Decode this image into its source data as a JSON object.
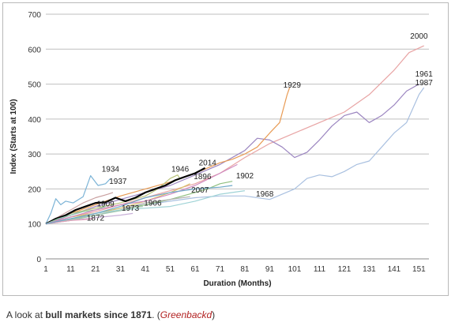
{
  "caption": {
    "prefix": "A look at ",
    "bold": "bull markets since 1871",
    "suffix": ".  (",
    "source": "Greenbackd",
    "end": ")"
  },
  "chart_data": {
    "type": "line",
    "xlabel": "Duration (Months)",
    "ylabel": "Index (Starts at 100)",
    "xlim": [
      1,
      155
    ],
    "ylim": [
      0,
      700
    ],
    "xticks": [
      1,
      11,
      21,
      31,
      41,
      51,
      61,
      71,
      81,
      91,
      101,
      111,
      121,
      131,
      141,
      151
    ],
    "yticks": [
      0,
      100,
      200,
      300,
      400,
      500,
      600,
      700
    ],
    "grid": "horizontal",
    "series": [
      {
        "name": "2000",
        "color": "#e8a4a4",
        "points": [
          [
            1,
            100
          ],
          [
            11,
            120
          ],
          [
            21,
            135
          ],
          [
            31,
            155
          ],
          [
            41,
            175
          ],
          [
            51,
            195
          ],
          [
            61,
            215
          ],
          [
            71,
            245
          ],
          [
            81,
            290
          ],
          [
            91,
            330
          ],
          [
            101,
            360
          ],
          [
            111,
            390
          ],
          [
            121,
            420
          ],
          [
            131,
            470
          ],
          [
            141,
            540
          ],
          [
            147,
            590
          ],
          [
            153,
            610
          ]
        ]
      },
      {
        "name": "1961",
        "color": "#9b85c0",
        "points": [
          [
            1,
            100
          ],
          [
            11,
            125
          ],
          [
            21,
            150
          ],
          [
            31,
            170
          ],
          [
            41,
            190
          ],
          [
            51,
            210
          ],
          [
            61,
            240
          ],
          [
            71,
            270
          ],
          [
            81,
            310
          ],
          [
            86,
            345
          ],
          [
            91,
            340
          ],
          [
            96,
            320
          ],
          [
            101,
            290
          ],
          [
            106,
            305
          ],
          [
            111,
            340
          ],
          [
            116,
            380
          ],
          [
            121,
            410
          ],
          [
            126,
            420
          ],
          [
            131,
            390
          ],
          [
            136,
            410
          ],
          [
            141,
            440
          ],
          [
            146,
            480
          ],
          [
            151,
            500
          ]
        ]
      },
      {
        "name": "1987",
        "color": "#a9c0e0",
        "points": [
          [
            1,
            100
          ],
          [
            11,
            115
          ],
          [
            21,
            130
          ],
          [
            31,
            145
          ],
          [
            41,
            155
          ],
          [
            51,
            165
          ],
          [
            61,
            175
          ],
          [
            71,
            180
          ],
          [
            81,
            180
          ],
          [
            91,
            170
          ],
          [
            96,
            185
          ],
          [
            101,
            200
          ],
          [
            106,
            230
          ],
          [
            111,
            240
          ],
          [
            116,
            235
          ],
          [
            121,
            250
          ],
          [
            126,
            270
          ],
          [
            131,
            280
          ],
          [
            136,
            320
          ],
          [
            141,
            360
          ],
          [
            146,
            390
          ],
          [
            151,
            470
          ],
          [
            153,
            490
          ]
        ]
      },
      {
        "name": "1929",
        "color": "#e89b55",
        "points": [
          [
            1,
            100
          ],
          [
            11,
            130
          ],
          [
            21,
            155
          ],
          [
            31,
            180
          ],
          [
            41,
            200
          ],
          [
            51,
            220
          ],
          [
            61,
            245
          ],
          [
            71,
            275
          ],
          [
            76,
            285
          ],
          [
            81,
            300
          ],
          [
            86,
            320
          ],
          [
            91,
            360
          ],
          [
            95,
            390
          ],
          [
            98,
            470
          ],
          [
            99,
            490
          ]
        ]
      },
      {
        "name": "1934",
        "color": "#7bb3d6",
        "points": [
          [
            1,
            100
          ],
          [
            3,
            130
          ],
          [
            5,
            172
          ],
          [
            7,
            155
          ],
          [
            9,
            165
          ],
          [
            12,
            160
          ],
          [
            16,
            178
          ],
          [
            19,
            238
          ],
          [
            22,
            210
          ],
          [
            25,
            215
          ],
          [
            27,
            230
          ]
        ]
      },
      {
        "name": "1937",
        "color": "#c9a0a0",
        "points": [
          [
            1,
            100
          ],
          [
            6,
            120
          ],
          [
            11,
            140
          ],
          [
            16,
            160
          ],
          [
            21,
            175
          ],
          [
            26,
            185
          ],
          [
            28,
            190
          ]
        ]
      },
      {
        "name": "1946",
        "color": "#b8c27a",
        "points": [
          [
            1,
            100
          ],
          [
            11,
            130
          ],
          [
            21,
            145
          ],
          [
            31,
            160
          ],
          [
            41,
            180
          ],
          [
            46,
            200
          ],
          [
            51,
            230
          ],
          [
            54,
            240
          ],
          [
            55,
            228
          ]
        ]
      },
      {
        "name": "1896",
        "color": "#d9c06a",
        "points": [
          [
            1,
            100
          ],
          [
            11,
            120
          ],
          [
            21,
            130
          ],
          [
            31,
            145
          ],
          [
            41,
            165
          ],
          [
            51,
            190
          ],
          [
            56,
            205
          ],
          [
            59,
            215
          ]
        ]
      },
      {
        "name": "2014",
        "color": "#000000",
        "points": [
          [
            1,
            100
          ],
          [
            5,
            115
          ],
          [
            9,
            125
          ],
          [
            13,
            140
          ],
          [
            17,
            150
          ],
          [
            21,
            160
          ],
          [
            25,
            162
          ],
          [
            29,
            175
          ],
          [
            33,
            165
          ],
          [
            37,
            175
          ],
          [
            41,
            190
          ],
          [
            45,
            200
          ],
          [
            49,
            210
          ],
          [
            53,
            225
          ],
          [
            57,
            235
          ],
          [
            61,
            245
          ],
          [
            65,
            260
          ]
        ]
      },
      {
        "name": "1902",
        "color": "#8fbf7f",
        "points": [
          [
            1,
            100
          ],
          [
            11,
            110
          ],
          [
            21,
            125
          ],
          [
            31,
            140
          ],
          [
            41,
            155
          ],
          [
            51,
            170
          ],
          [
            61,
            190
          ],
          [
            66,
            200
          ],
          [
            71,
            215
          ],
          [
            76,
            222
          ]
        ]
      },
      {
        "name": "2007",
        "color": "#b0b0b0",
        "points": [
          [
            1,
            100
          ],
          [
            11,
            115
          ],
          [
            21,
            125
          ],
          [
            31,
            140
          ],
          [
            41,
            160
          ],
          [
            51,
            170
          ],
          [
            56,
            175
          ],
          [
            59,
            178
          ]
        ]
      },
      {
        "name": "1968",
        "color": "#9fd3d6",
        "points": [
          [
            1,
            100
          ],
          [
            11,
            115
          ],
          [
            21,
            130
          ],
          [
            31,
            140
          ],
          [
            41,
            145
          ],
          [
            51,
            150
          ],
          [
            61,
            165
          ],
          [
            71,
            185
          ],
          [
            76,
            190
          ],
          [
            81,
            195
          ]
        ]
      },
      {
        "name": "1909",
        "color": "#8cc8a8",
        "points": [
          [
            1,
            100
          ],
          [
            6,
            115
          ],
          [
            11,
            125
          ],
          [
            16,
            135
          ],
          [
            21,
            140
          ],
          [
            25,
            150
          ]
        ]
      },
      {
        "name": "1906",
        "color": "#a0c8b0",
        "points": [
          [
            1,
            100
          ],
          [
            11,
            112
          ],
          [
            21,
            125
          ],
          [
            31,
            138
          ],
          [
            37,
            148
          ],
          [
            40,
            150
          ]
        ]
      },
      {
        "name": "1973",
        "color": "#c8b0d8",
        "points": [
          [
            1,
            100
          ],
          [
            11,
            110
          ],
          [
            21,
            118
          ],
          [
            31,
            125
          ],
          [
            36,
            130
          ]
        ]
      },
      {
        "name": "1872",
        "color": "#e0a0b8",
        "points": [
          [
            1,
            100
          ],
          [
            6,
            105
          ],
          [
            11,
            110
          ],
          [
            16,
            112
          ],
          [
            20,
            115
          ]
        ]
      },
      {
        "name": "",
        "color": "#d08ac0",
        "points": [
          [
            1,
            100
          ],
          [
            11,
            120
          ],
          [
            21,
            140
          ],
          [
            31,
            155
          ],
          [
            41,
            165
          ],
          [
            51,
            185
          ],
          [
            61,
            210
          ],
          [
            71,
            245
          ],
          [
            78,
            270
          ]
        ]
      },
      {
        "name": "",
        "color": "#6fa8c8",
        "points": [
          [
            1,
            100
          ],
          [
            11,
            115
          ],
          [
            21,
            130
          ],
          [
            31,
            150
          ],
          [
            41,
            175
          ],
          [
            51,
            190
          ],
          [
            61,
            200
          ],
          [
            71,
            205
          ],
          [
            76,
            210
          ]
        ]
      }
    ],
    "labels": [
      {
        "text": "2000",
        "x": 151,
        "y": 630
      },
      {
        "text": "1961",
        "x": 153,
        "y": 522
      },
      {
        "text": "1987",
        "x": 153,
        "y": 497
      },
      {
        "text": "1929",
        "x": 100,
        "y": 490
      },
      {
        "text": "1934",
        "x": 27,
        "y": 250
      },
      {
        "text": "1937",
        "x": 30,
        "y": 215
      },
      {
        "text": "1946",
        "x": 55,
        "y": 250
      },
      {
        "text": "1896",
        "x": 64,
        "y": 228
      },
      {
        "text": "2014",
        "x": 66,
        "y": 268
      },
      {
        "text": "1902",
        "x": 81,
        "y": 230
      },
      {
        "text": "2007",
        "x": 63,
        "y": 190
      },
      {
        "text": "1968",
        "x": 89,
        "y": 178
      },
      {
        "text": "1909",
        "x": 25,
        "y": 150
      },
      {
        "text": "1906",
        "x": 44,
        "y": 152
      },
      {
        "text": "1973",
        "x": 35,
        "y": 138
      },
      {
        "text": "1872",
        "x": 21,
        "y": 110
      }
    ]
  }
}
